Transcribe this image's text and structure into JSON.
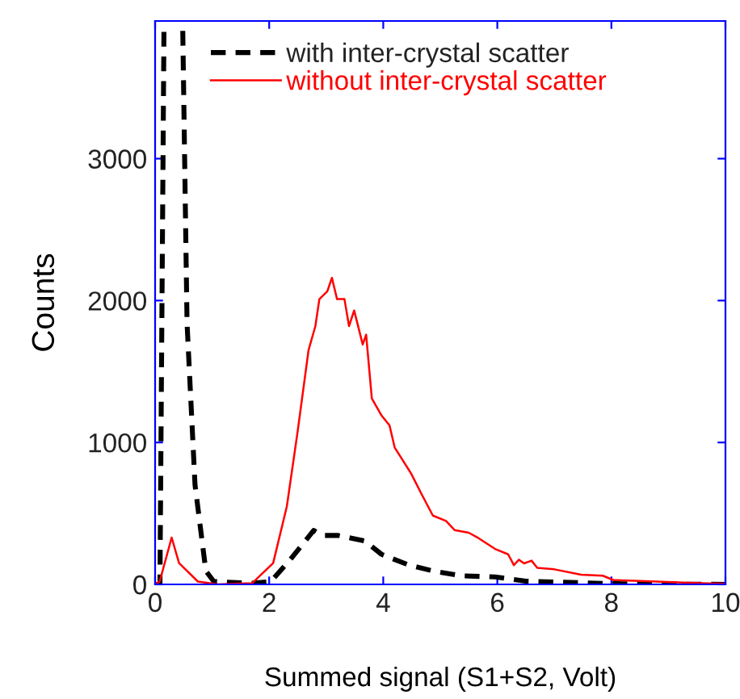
{
  "chart_data": {
    "type": "line",
    "xlabel": "Summed signal (S1+S2, Volt)",
    "ylabel": "Counts",
    "xlim": [
      0,
      10
    ],
    "ylim": [
      0,
      3970
    ],
    "xticks": [
      0,
      2,
      4,
      6,
      8,
      10
    ],
    "yticks": [
      0,
      1000,
      2000,
      3000
    ],
    "grid": false,
    "legend": "top left",
    "marker": "none",
    "series": [
      {
        "name": "with inter-crystal scatter",
        "color": "#000000",
        "line_style": "dashed",
        "x": [
          0,
          0.085,
          0.155,
          0.16,
          0.48,
          0.485,
          0.56,
          0.7,
          0.89,
          1.03,
          1.7,
          2.03,
          2.36,
          2.78,
          2.93,
          3.2,
          3.67,
          3.97,
          4.45,
          4.91,
          5.39,
          5.96,
          6.5,
          7.15,
          8,
          10
        ],
        "values": [
          0,
          0,
          3900,
          null,
          null,
          3900,
          1840,
          700,
          95,
          20,
          8,
          20,
          170,
          380,
          345,
          345,
          307,
          212,
          136,
          91,
          60,
          53,
          23,
          15,
          5,
          0
        ]
      },
      {
        "name": "without inter-crystal scatter",
        "color": "#ff0000",
        "line_style": "solid",
        "x": [
          0,
          0.08,
          0.29,
          0.42,
          0.75,
          1.1,
          1.7,
          2.07,
          2.31,
          2.5,
          2.69,
          2.81,
          2.88,
          3.02,
          3.1,
          3.19,
          3.32,
          3.4,
          3.49,
          3.64,
          3.7,
          3.8,
          3.97,
          4.11,
          4.2,
          4.49,
          4.68,
          4.87,
          5.1,
          5.25,
          5.5,
          5.67,
          5.96,
          6.19,
          6.29,
          6.38,
          6.47,
          6.6,
          6.7,
          7.0,
          7.47,
          7.85,
          8.04,
          8.6,
          9.55,
          10
        ],
        "values": [
          0,
          20,
          330,
          150,
          20,
          0,
          8,
          150,
          550,
          1080,
          1650,
          1820,
          2010,
          2065,
          2160,
          2010,
          2010,
          1820,
          1930,
          1690,
          1760,
          1310,
          1190,
          1120,
          965,
          780,
          630,
          485,
          447,
          383,
          364,
          326,
          250,
          212,
          136,
          174,
          148,
          167,
          117,
          106,
          68,
          61,
          30,
          23,
          8,
          4
        ]
      }
    ]
  }
}
